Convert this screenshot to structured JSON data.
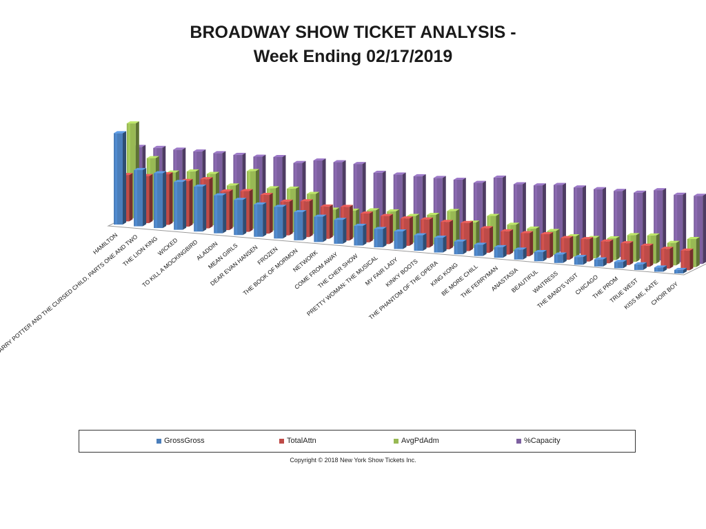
{
  "title_line1": "BROADWAY  SHOW TICKET ANALYSIS -",
  "title_line2": "Week Ending 02/17/2019",
  "copyright": "Copyright © 2018 New York Show Tickets Inc.",
  "colors": {
    "GrossGross": "#4a7ebb",
    "TotalAttn": "#be4b48",
    "AvgPdAdm": "#98b954",
    "%Capacity": "#7d60a0"
  },
  "chart_data": {
    "type": "bar",
    "subtype": "3d-clustered-column",
    "title": "BROADWAY  SHOW TICKET ANALYSIS - Week Ending 02/17/2019",
    "legend_position": "bottom",
    "grid": false,
    "categories": [
      "HAMILTON",
      "HARRY POTTER AND THE CURSED CHILD, PARTS ONE AND TWO",
      "THE LION KING",
      "WICKED",
      "TO KILL A MOCKINGBIRD",
      "ALADDIN",
      "MEAN GIRLS",
      "DEAR EVAN HANSEN",
      "FROZEN",
      "THE BOOK OF MORMON",
      "NETWORK",
      "COME FROM AWAY",
      "THE CHER SHOW",
      "PRETTY WOMAN: THE MUSICAL",
      "MY FAIR LADY",
      "KINKY BOOTS",
      "THE PHANTOM OF THE OPERA",
      "KING KONG",
      "BE MORE CHILL",
      "THE FERRYMAN",
      "ANASTASIA",
      "BEAUTIFUL",
      "WAITRESS",
      "THE BAND'S  VISIT",
      "CHICAGO",
      "THE PROM",
      "TRUE WEST",
      "KISS ME, KATE",
      "CHOIR BOY"
    ],
    "series": [
      {
        "name": "GrossGross",
        "values": [
          130,
          80,
          78,
          68,
          64,
          54,
          50,
          46,
          45,
          40,
          36,
          34,
          28,
          26,
          25,
          22,
          21,
          18,
          16,
          15,
          14,
          13,
          12,
          11,
          10,
          9,
          8,
          6,
          5
        ]
      },
      {
        "name": "TotalAttn",
        "values": [
          66,
          67,
          72,
          65,
          70,
          55,
          58,
          55,
          48,
          51,
          46,
          48,
          41,
          40,
          39,
          40,
          39,
          40,
          35,
          33,
          33,
          34,
          31,
          32,
          31,
          31,
          30,
          28,
          28
        ]
      },
      {
        "name": "AvgPdAdm",
        "values": [
          135,
          88,
          70,
          74,
          73,
          59,
          82,
          60,
          62,
          57,
          37,
          38,
          41,
          42,
          38,
          42,
          50,
          36,
          48,
          38,
          35,
          34,
          29,
          29,
          31,
          38,
          40,
          32,
          40
        ]
      },
      {
        "name": "%Capacity",
        "values": [
          97,
          98,
          98,
          98,
          98,
          98,
          98,
          100,
          94,
          100,
          100,
          100,
          90,
          90,
          90,
          90,
          90,
          88,
          98,
          91,
          92,
          95,
          94,
          94,
          94,
          94,
          100,
          96,
          97
        ]
      }
    ]
  }
}
